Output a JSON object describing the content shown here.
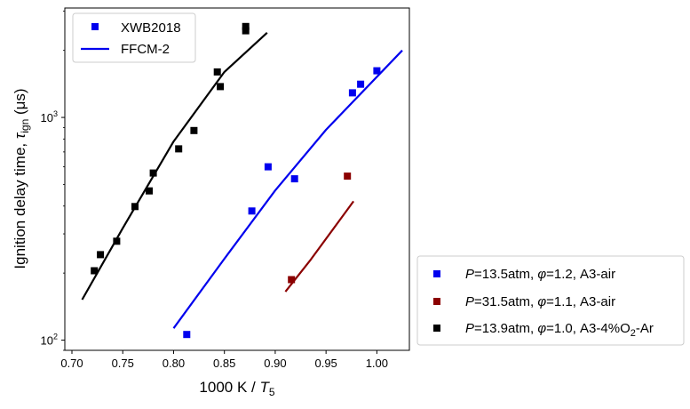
{
  "chart_data": {
    "type": "scatter",
    "xlabel": {
      "main": "1000 K / ",
      "var": "T",
      "sub": "5"
    },
    "ylabel": {
      "main": "Ignition delay time, ",
      "var": "τ",
      "sub": "ign",
      "unit": " (μs)"
    },
    "xlim": [
      0.693,
      1.032
    ],
    "ylim": [
      90,
      3100
    ],
    "yscale": "log",
    "xticks": [
      0.7,
      0.75,
      0.8,
      0.85,
      0.9,
      0.95,
      1.0
    ],
    "xtick_labels": [
      "0.70",
      "0.75",
      "0.80",
      "0.85",
      "0.90",
      "0.95",
      "1.00"
    ],
    "yticks": [
      {
        "value": 100,
        "base": "10",
        "exp": "2"
      },
      {
        "value": 1000,
        "base": "10",
        "exp": "3"
      }
    ],
    "legend_top": {
      "position": "top-left",
      "entries": [
        {
          "label": "XWB2018",
          "kind": "marker"
        },
        {
          "label": "FFCM-2",
          "kind": "line"
        }
      ]
    },
    "series": [
      {
        "name": "P=13.5atm, φ=1.2, A3-air",
        "label_parts": {
          "P": "P",
          "pval": "=13.5atm, ",
          "phi": "φ",
          "rest": "=1.2, A3-air",
          "sub": "",
          "tail": ""
        },
        "color": "#0000ee",
        "points": [
          [
            0.813,
            106
          ],
          [
            0.877,
            380
          ],
          [
            0.893,
            600
          ],
          [
            0.919,
            530
          ],
          [
            0.976,
            1290
          ],
          [
            0.984,
            1410
          ],
          [
            1.0,
            1620
          ]
        ],
        "model_line": [
          [
            0.8,
            113
          ],
          [
            0.85,
            232
          ],
          [
            0.9,
            470
          ],
          [
            0.95,
            880
          ],
          [
            1.025,
            2000
          ]
        ]
      },
      {
        "name": "P=31.5atm, φ=1.1, A3-air",
        "label_parts": {
          "P": "P",
          "pval": "=31.5atm, ",
          "phi": "φ",
          "rest": "=1.1, A3-air",
          "sub": "",
          "tail": ""
        },
        "color": "#8b0000",
        "points": [
          [
            0.916,
            187
          ],
          [
            0.971,
            545
          ]
        ],
        "model_line": [
          [
            0.91,
            165
          ],
          [
            0.935,
            230
          ],
          [
            0.977,
            420
          ]
        ]
      },
      {
        "name": "P=13.9atm, φ=1.0, A3-4%O2-Ar",
        "label_parts": {
          "P": "P",
          "pval": "=13.9atm, ",
          "phi": "φ",
          "rest": "=1.0, A3-4%O",
          "sub": "2",
          "tail": "-Ar"
        },
        "color": "#000000",
        "points": [
          [
            0.722,
            205
          ],
          [
            0.728,
            242
          ],
          [
            0.744,
            278
          ],
          [
            0.762,
            398
          ],
          [
            0.776,
            468
          ],
          [
            0.78,
            563
          ],
          [
            0.805,
            723
          ],
          [
            0.82,
            873
          ],
          [
            0.843,
            1600
          ],
          [
            0.846,
            1375
          ],
          [
            0.871,
            2450
          ],
          [
            0.871,
            2560
          ]
        ],
        "model_line": [
          [
            0.71,
            152
          ],
          [
            0.75,
            318
          ],
          [
            0.8,
            780
          ],
          [
            0.85,
            1600
          ],
          [
            0.892,
            2400
          ]
        ]
      }
    ]
  }
}
